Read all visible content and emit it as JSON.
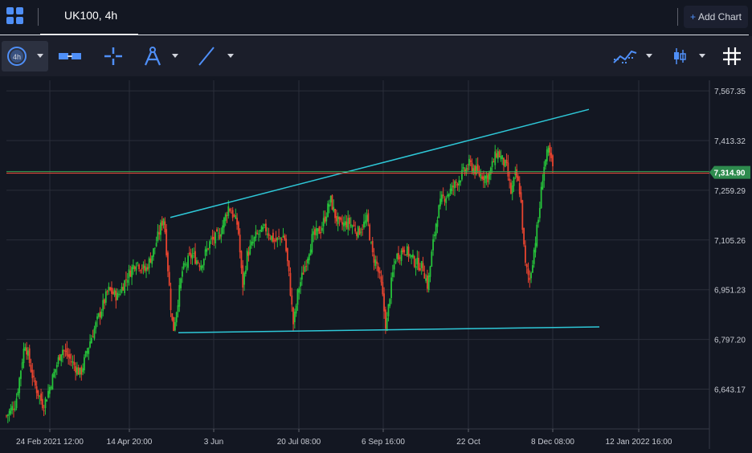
{
  "header": {
    "tab_title": "UK100, 4h",
    "add_chart_label": "Add Chart"
  },
  "toolbar": {
    "interval_badge": "4h"
  },
  "icons": {
    "layout": "layout-grid-icon",
    "crosshair": "crosshair-icon",
    "measure": "measure-compass-icon",
    "trendline": "trendline-icon",
    "indicators": "indicators-icon",
    "chart_type": "candlestick-icon",
    "grid_toggle": "grid-icon"
  },
  "colors": {
    "background": "#131722",
    "toolbar": "#1b1e2a",
    "accent": "#4f8ff7",
    "bull": "#26c23a",
    "bear": "#e8442f",
    "trendline": "#2ec8d8",
    "price_line": "#e04a3a",
    "price_badge": "#2e8b4e"
  },
  "chart_data": {
    "type": "candlestick",
    "symbol": "UK100",
    "interval": "4h",
    "y_ticks": [
      "7,567.35",
      "7,413.32",
      "7,259.29",
      "7,105.26",
      "6,951.23",
      "6,797.20",
      "6,643.17"
    ],
    "y_tick_values": [
      7567.35,
      7413.32,
      7259.29,
      7105.26,
      6951.23,
      6797.2,
      6643.17
    ],
    "ylim": [
      6520,
      7600
    ],
    "x_ticks": [
      "24 Feb 2021 12:00",
      "14 Apr 20:00",
      "3 Jun",
      "20 Jul 08:00",
      "6 Sep 16:00",
      "22 Oct",
      "8 Dec 08:00",
      "12 Jan 2022 16:00"
    ],
    "last_price_label": "7,314.90",
    "last_price": 7314.9,
    "close_path": [
      [
        0.0,
        6560
      ],
      [
        0.02,
        6600
      ],
      [
        0.04,
        6790
      ],
      [
        0.06,
        6660
      ],
      [
        0.08,
        6590
      ],
      [
        0.1,
        6680
      ],
      [
        0.12,
        6770
      ],
      [
        0.14,
        6730
      ],
      [
        0.16,
        6690
      ],
      [
        0.18,
        6790
      ],
      [
        0.2,
        6870
      ],
      [
        0.22,
        6950
      ],
      [
        0.24,
        6930
      ],
      [
        0.26,
        6990
      ],
      [
        0.28,
        7040
      ],
      [
        0.3,
        7010
      ],
      [
        0.32,
        7080
      ],
      [
        0.34,
        7180
      ],
      [
        0.355,
        6900
      ],
      [
        0.36,
        6820
      ],
      [
        0.38,
        7010
      ],
      [
        0.4,
        7060
      ],
      [
        0.42,
        7030
      ],
      [
        0.44,
        7100
      ],
      [
        0.46,
        7120
      ],
      [
        0.48,
        7210
      ],
      [
        0.5,
        7150
      ],
      [
        0.51,
        6960
      ],
      [
        0.52,
        7060
      ],
      [
        0.54,
        7120
      ],
      [
        0.56,
        7140
      ],
      [
        0.58,
        7100
      ],
      [
        0.6,
        7120
      ],
      [
        0.61,
        7000
      ],
      [
        0.62,
        6840
      ],
      [
        0.63,
        6950
      ],
      [
        0.64,
        7000
      ],
      [
        0.66,
        7110
      ],
      [
        0.68,
        7140
      ],
      [
        0.7,
        7230
      ],
      [
        0.71,
        7180
      ],
      [
        0.72,
        7150
      ],
      [
        0.74,
        7160
      ],
      [
        0.76,
        7130
      ],
      [
        0.78,
        7170
      ],
      [
        0.79,
        7060
      ],
      [
        0.8,
        7030
      ],
      [
        0.81,
        6960
      ],
      [
        0.82,
        6830
      ],
      [
        0.83,
        6960
      ],
      [
        0.84,
        7050
      ],
      [
        0.86,
        7080
      ],
      [
        0.88,
        7040
      ],
      [
        0.9,
        7020
      ],
      [
        0.91,
        6960
      ],
      [
        0.92,
        7080
      ],
      [
        0.93,
        7180
      ],
      [
        0.94,
        7230
      ],
      [
        0.96,
        7260
      ],
      [
        0.98,
        7300
      ],
      [
        1.0,
        7340
      ],
      [
        1.02,
        7310
      ],
      [
        1.04,
        7300
      ],
      [
        1.06,
        7380
      ],
      [
        1.08,
        7330
      ],
      [
        1.09,
        7250
      ],
      [
        1.1,
        7310
      ],
      [
        1.11,
        7250
      ],
      [
        1.12,
        7030
      ],
      [
        1.13,
        6980
      ],
      [
        1.14,
        7080
      ],
      [
        1.15,
        7180
      ],
      [
        1.16,
        7330
      ],
      [
        1.17,
        7380
      ],
      [
        1.18,
        7330
      ]
    ],
    "trendlines": [
      {
        "name": "upper",
        "x": [
          "14 Apr 20:00",
          "8 Dec 08:00"
        ],
        "y": [
          7175,
          7490
        ]
      },
      {
        "name": "lower",
        "x": [
          "14 Apr 20:00",
          "8 Dec 08:00"
        ],
        "y": [
          6818,
          6826
        ]
      }
    ]
  }
}
